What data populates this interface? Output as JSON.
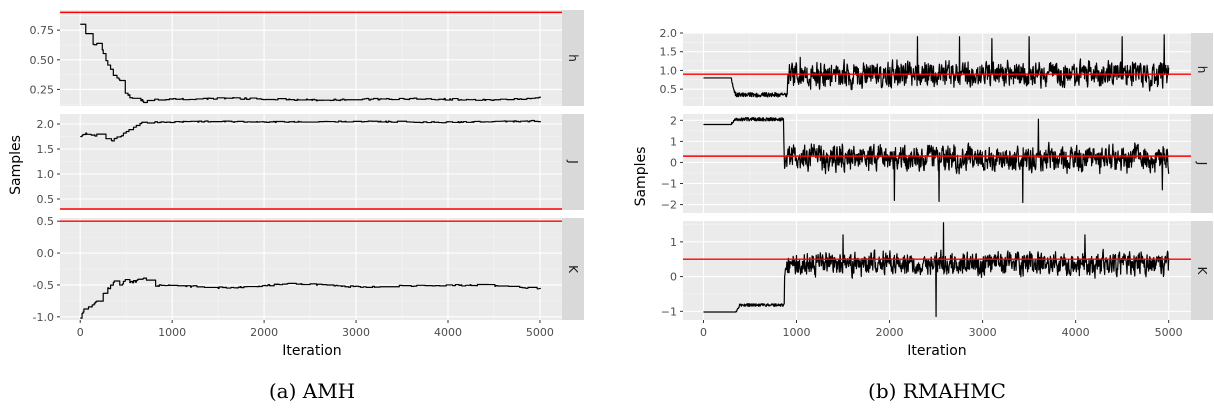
{
  "chart_data": [
    {
      "type": "line",
      "caption": "(a)  AMH",
      "xlabel": "Iteration",
      "ylabel": "Samples",
      "x_ticks": [
        0,
        1000,
        2000,
        3000,
        4000,
        5000
      ],
      "x_tick_labels": [
        "0",
        "1000",
        "2000",
        "3000",
        "4000",
        "5000"
      ],
      "xlim": [
        -220,
        5240
      ],
      "grid": true,
      "legend": "none",
      "trace_color": "#000000",
      "reference_color": "#ff0000",
      "panel_bg": "#ebebeb",
      "strip_bg": "#d9d9d9",
      "facets": [
        {
          "strip": "h",
          "ylim": [
            0.11,
            0.92
          ],
          "y_ticks": [
            0.25,
            0.5,
            0.75
          ],
          "y_tick_labels": [
            "0.25",
            "0.50",
            "0.75"
          ],
          "reference": 0.9,
          "trace": {
            "kind": "converge",
            "seed": 11,
            "burn": [
              [
                0,
                0.8
              ],
              [
                40,
                0.8
              ],
              [
                60,
                0.72
              ],
              [
                150,
                0.63
              ],
              [
                200,
                0.64
              ],
              [
                260,
                0.55
              ],
              [
                310,
                0.43
              ],
              [
                380,
                0.36
              ],
              [
                440,
                0.32
              ],
              [
                470,
                0.22
              ],
              [
                540,
                0.19
              ],
              [
                620,
                0.16
              ],
              [
                700,
                0.15
              ],
              [
                800,
                0.165
              ]
            ],
            "steady": [
              [
                800,
                0.165
              ],
              [
                1600,
                0.175
              ],
              [
                2600,
                0.16
              ],
              [
                3500,
                0.172
              ],
              [
                4500,
                0.162
              ],
              [
                5000,
                0.178
              ]
            ],
            "noise": 0.007
          }
        },
        {
          "strip": "J",
          "ylim": [
            0.28,
            2.2
          ],
          "y_ticks": [
            0.5,
            1.0,
            1.5,
            2.0
          ],
          "y_tick_labels": [
            "0.5",
            "1.0",
            "1.5",
            "2.0"
          ],
          "reference": 0.3,
          "trace": {
            "kind": "converge",
            "seed": 23,
            "burn": [
              [
                0,
                1.77
              ],
              [
                80,
                1.82
              ],
              [
                140,
                1.76
              ],
              [
                200,
                1.8
              ],
              [
                260,
                1.74
              ],
              [
                300,
                1.69
              ],
              [
                330,
                1.63
              ],
              [
                380,
                1.72
              ],
              [
                450,
                1.78
              ],
              [
                520,
                1.9
              ],
              [
                600,
                1.97
              ],
              [
                700,
                2.03
              ]
            ],
            "steady": [
              [
                700,
                2.03
              ],
              [
                1300,
                2.05
              ],
              [
                2200,
                2.04
              ],
              [
                3100,
                2.05
              ],
              [
                4000,
                2.035
              ],
              [
                5000,
                2.06
              ]
            ],
            "noise": 0.012
          }
        },
        {
          "strip": "K",
          "ylim": [
            -1.05,
            0.55
          ],
          "y_ticks": [
            -1.0,
            -0.5,
            0.0,
            0.5
          ],
          "y_tick_labels": [
            "-1.0",
            "-0.5",
            "0.0",
            "0.5"
          ],
          "reference": 0.5,
          "trace": {
            "kind": "converge",
            "seed": 37,
            "burn": [
              [
                0,
                -1.02
              ],
              [
                40,
                -0.9
              ],
              [
                120,
                -0.83
              ],
              [
                200,
                -0.74
              ],
              [
                280,
                -0.6
              ],
              [
                360,
                -0.45
              ],
              [
                430,
                -0.5
              ],
              [
                500,
                -0.42
              ],
              [
                560,
                -0.47
              ],
              [
                640,
                -0.4
              ],
              [
                700,
                -0.38
              ],
              [
                780,
                -0.52
              ],
              [
                860,
                -0.5
              ]
            ],
            "steady": [
              [
                860,
                -0.5
              ],
              [
                1600,
                -0.55
              ],
              [
                2300,
                -0.48
              ],
              [
                3000,
                -0.53
              ],
              [
                3800,
                -0.51
              ],
              [
                4400,
                -0.5
              ],
              [
                5000,
                -0.56
              ]
            ],
            "noise": 0.012
          }
        }
      ]
    },
    {
      "type": "line",
      "caption": "(b)  RMAHMC",
      "xlabel": "Iteration",
      "ylabel": "Samples",
      "x_ticks": [
        0,
        1000,
        2000,
        3000,
        4000,
        5000
      ],
      "x_tick_labels": [
        "0",
        "1000",
        "2000",
        "3000",
        "4000",
        "5000"
      ],
      "xlim": [
        -220,
        5240
      ],
      "grid": true,
      "legend": "none",
      "trace_color": "#000000",
      "reference_color": "#ff0000",
      "panel_bg": "#ebebeb",
      "strip_bg": "#d9d9d9",
      "facets": [
        {
          "strip": "h",
          "ylim": [
            0.05,
            2.0
          ],
          "y_ticks": [
            0.5,
            1.0,
            1.5,
            2.0
          ],
          "y_tick_labels": [
            "0.5",
            "1.0",
            "1.5",
            "2.0"
          ],
          "reference": 0.9,
          "trace": {
            "kind": "mixing",
            "seed": 51,
            "start": 0.8,
            "flat_until": 300,
            "burn_until": 900,
            "burn_level": 0.35,
            "burn_noise": 0.06,
            "mean": 0.9,
            "amp": 0.55,
            "lo": 0.1,
            "hi": 1.95,
            "spikes": [
              [
                1040,
                1.35
              ],
              [
                2300,
                1.9
              ],
              [
                2750,
                1.9
              ],
              [
                3100,
                1.85
              ],
              [
                3500,
                1.9
              ],
              [
                4500,
                1.9
              ],
              [
                4950,
                1.95
              ]
            ]
          }
        },
        {
          "strip": "J",
          "ylim": [
            -2.4,
            2.3
          ],
          "y_ticks": [
            -2,
            -1,
            0,
            1,
            2
          ],
          "y_tick_labels": [
            "−2",
            "−1",
            "0",
            "1",
            "2"
          ],
          "reference": 0.3,
          "trace": {
            "kind": "mixing",
            "seed": 67,
            "start": 1.8,
            "flat_until": 300,
            "burn_until": 860,
            "burn_level": 2.05,
            "burn_noise": 0.08,
            "mean": 0.2,
            "amp": 1.0,
            "lo": -1.9,
            "hi": 2.1,
            "spikes": [
              [
                2050,
                -1.8
              ],
              [
                2530,
                -1.85
              ],
              [
                3430,
                -1.9
              ],
              [
                3600,
                2.05
              ],
              [
                4930,
                -1.3
              ]
            ]
          }
        },
        {
          "strip": "K",
          "ylim": [
            -1.25,
            1.6
          ],
          "y_ticks": [
            -1,
            0,
            1
          ],
          "y_tick_labels": [
            "−1",
            "0",
            "1"
          ],
          "reference": 0.5,
          "trace": {
            "kind": "mixing",
            "seed": 83,
            "start": -1.02,
            "flat_until": 350,
            "burn_until": 870,
            "burn_level": -0.82,
            "burn_noise": 0.04,
            "mean": 0.35,
            "amp": 0.55,
            "lo": -0.6,
            "hi": 1.2,
            "spikes": [
              [
                2500,
                -1.15
              ],
              [
                2580,
                1.55
              ],
              [
                1500,
                1.2
              ],
              [
                4100,
                1.2
              ]
            ]
          }
        }
      ]
    }
  ]
}
